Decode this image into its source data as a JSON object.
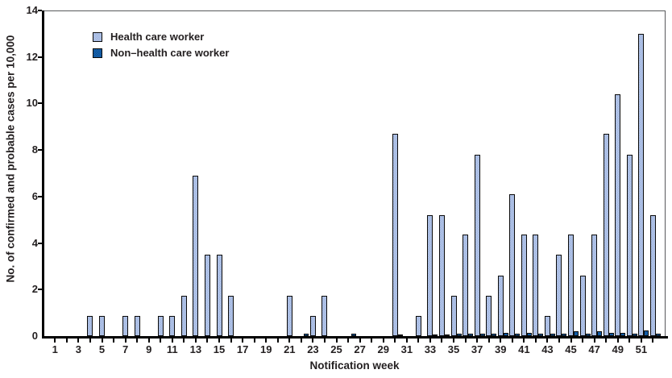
{
  "figure": {
    "y_axis_title": "No. of confirmed and probable cases per 10,000",
    "x_axis_title": "Notification week"
  },
  "chart_data": {
    "type": "bar",
    "title": "",
    "xlabel": "Notification week",
    "ylabel": "No. of confirmed and probable cases per 10,000",
    "ylim": [
      0,
      14
    ],
    "yticks": [
      0,
      2,
      4,
      6,
      8,
      10,
      12,
      14
    ],
    "x": [
      1,
      2,
      3,
      4,
      5,
      6,
      7,
      8,
      9,
      10,
      11,
      12,
      13,
      14,
      15,
      16,
      17,
      18,
      19,
      20,
      21,
      22,
      23,
      24,
      25,
      26,
      27,
      28,
      29,
      30,
      31,
      32,
      33,
      34,
      35,
      36,
      37,
      38,
      39,
      40,
      41,
      42,
      43,
      44,
      45,
      46,
      47,
      48,
      49,
      50,
      51,
      52
    ],
    "xtick_labels_shown": [
      1,
      3,
      5,
      7,
      9,
      11,
      13,
      15,
      17,
      19,
      21,
      23,
      25,
      27,
      29,
      31,
      33,
      35,
      37,
      39,
      41,
      43,
      45,
      47,
      49,
      51
    ],
    "grid": false,
    "legend_position": "top-left-inside",
    "series": [
      {
        "name": "Health care worker",
        "color": "#b4c6e9",
        "values": [
          0,
          0,
          0,
          0.85,
          0.85,
          0,
          0.85,
          0.85,
          0,
          0.85,
          0.85,
          1.75,
          6.9,
          3.5,
          3.5,
          1.75,
          0,
          0,
          0,
          0,
          1.75,
          0,
          0.85,
          1.75,
          0,
          0,
          0,
          0,
          0,
          8.7,
          0,
          0.85,
          5.2,
          5.2,
          1.75,
          4.35,
          7.8,
          1.75,
          2.6,
          6.1,
          4.35,
          4.35,
          0.85,
          3.5,
          4.35,
          2.6,
          4.35,
          8.7,
          10.4,
          7.8,
          13,
          5.2
        ]
      },
      {
        "name": "Non–health care worker",
        "color": "#1766b2",
        "values": [
          0,
          0,
          0,
          0,
          0,
          0,
          0,
          0,
          0,
          0,
          0,
          0,
          0,
          0,
          0,
          0,
          0,
          0,
          0,
          0,
          0,
          0.1,
          0,
          0,
          0,
          0.1,
          0,
          0,
          0,
          0.05,
          0,
          0,
          0.05,
          0.05,
          0.1,
          0.1,
          0.1,
          0.1,
          0.15,
          0.1,
          0.15,
          0.1,
          0.1,
          0.1,
          0.2,
          0.1,
          0.2,
          0.15,
          0.15,
          0.1,
          0.25,
          0.1
        ]
      }
    ]
  }
}
